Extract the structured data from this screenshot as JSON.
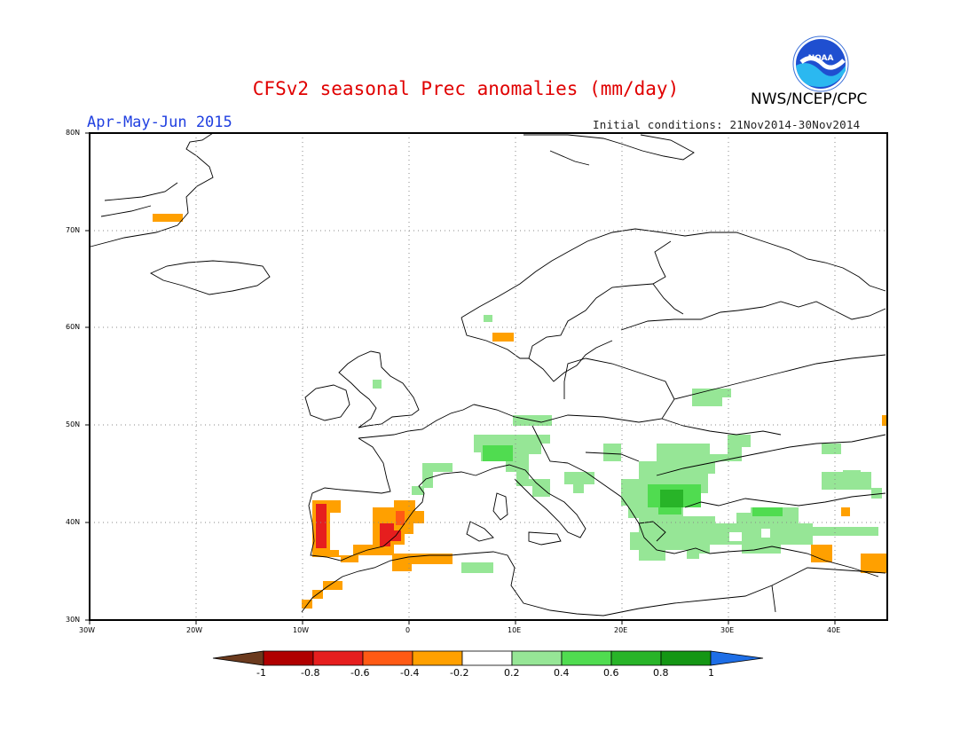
{
  "header": {
    "title": "CFSv2 seasonal Prec anomalies (mm/day)",
    "season": "Apr-May-Jun 2015",
    "initial_conditions": "Initial conditions: 21Nov2014-30Nov2014",
    "agency": "NWS/NCEP/CPC",
    "logo_text": "NOAA"
  },
  "map": {
    "lon_range": [
      -30,
      45
    ],
    "lat_range": [
      30,
      80
    ],
    "lon_ticks": [
      "30W",
      "20W",
      "10W",
      "0",
      "10E",
      "20E",
      "30E",
      "40E"
    ],
    "lat_ticks": [
      "30N",
      "40N",
      "50N",
      "60N",
      "70N",
      "80N"
    ],
    "gridlines": true,
    "region": "Europe"
  },
  "colorbar": {
    "labels": [
      "-1",
      "-0.8",
      "-0.6",
      "-0.4",
      "-0.2",
      "0.2",
      "0.4",
      "0.6",
      "0.8",
      "1"
    ],
    "colors": {
      "below_min": "#6b3a1e",
      "-1_-0.8": "#b00000",
      "-0.8_-0.6": "#e61e1e",
      "-0.6_-0.4": "#ff5a14",
      "-0.4_-0.2": "#ffa000",
      "-0.2_0.2": "#ffffff",
      "0.2_0.4": "#96e696",
      "0.4_0.6": "#50dc50",
      "0.6_0.8": "#28b428",
      "0.8_1": "#149614",
      "above_max": "#1e6ee6"
    }
  }
}
